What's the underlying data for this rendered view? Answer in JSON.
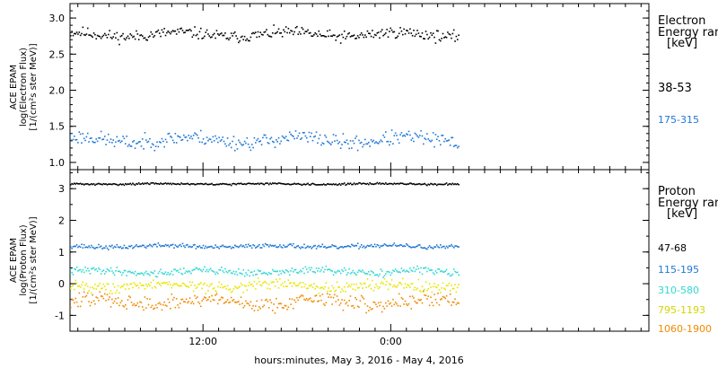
{
  "chart_data": [
    {
      "type": "scatter",
      "panel": "electron",
      "ylabel_lines": [
        "ACE EPAM",
        "log(Electron Flux)",
        "[1/(cm²s ster MeV)]"
      ],
      "yticks": [
        "1.0",
        "1.5",
        "2.0",
        "2.5",
        "3.0"
      ],
      "ylim": [
        0.9,
        3.2
      ],
      "legend_title": [
        "Electron",
        "Energy ran"
      ],
      "legend_unit": "[keV]",
      "series": [
        {
          "name": "38-53",
          "color": "#000000",
          "mean": 2.78,
          "spread": 0.055,
          "seed": 11
        },
        {
          "name": "175-315",
          "color": "#1f77d4",
          "mean": 1.32,
          "spread": 0.07,
          "seed": 23
        }
      ]
    },
    {
      "type": "scatter",
      "panel": "proton",
      "ylabel_lines": [
        "ACE EPAM",
        "log(Proton Flux)",
        "[1/(cm²s ster MeV)]"
      ],
      "yticks": [
        "-1",
        "0",
        "1",
        "2",
        "3"
      ],
      "ylim": [
        -1.5,
        3.6
      ],
      "legend_title": [
        "Proton",
        "Energy ran"
      ],
      "legend_unit": "[keV]",
      "series": [
        {
          "name": "47-68",
          "color": "#000000",
          "mean": 3.17,
          "spread": 0.02,
          "seed": 31
        },
        {
          "name": "115-195",
          "color": "#1f77d4",
          "mean": 1.2,
          "spread": 0.05,
          "seed": 37
        },
        {
          "name": "310-580",
          "color": "#2fd9d0",
          "mean": 0.4,
          "spread": 0.08,
          "seed": 41
        },
        {
          "name": "795-1193",
          "color": "#e6e600",
          "mean": -0.05,
          "spread": 0.12,
          "seed": 43
        },
        {
          "name": "1060-1900",
          "color": "#f08a00",
          "mean": -0.55,
          "spread": 0.17,
          "seed": 47
        }
      ]
    }
  ],
  "x_axis": {
    "ticks": [
      {
        "label": "12:00",
        "hours": 12
      },
      {
        "label": "0:00",
        "hours": 24
      }
    ],
    "xlim_hours": [
      3.5,
      40.5
    ],
    "data_end_hours": 28.3,
    "minor_step_hours": 1,
    "xlabel": "hours:minutes, May  3, 2016 - May  4, 2016"
  }
}
